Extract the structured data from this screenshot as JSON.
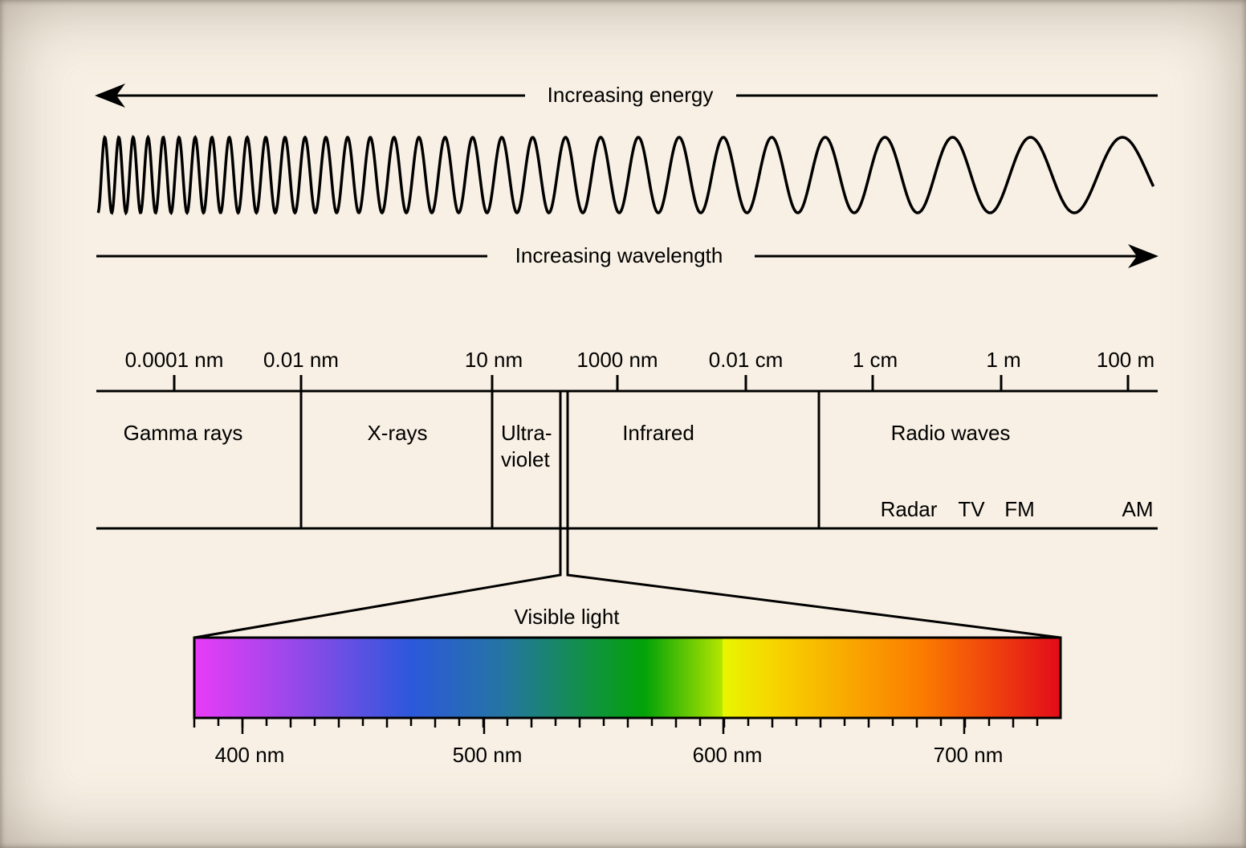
{
  "arrows": {
    "energy_label": "Increasing energy",
    "wavelength_label": "Increasing wavelength"
  },
  "scale": {
    "ticks": [
      "0.0001 nm",
      "0.01 nm",
      "10 nm",
      "1000 nm",
      "0.01 cm",
      "1 cm",
      "1 m",
      "100 m"
    ]
  },
  "bands": {
    "gamma": "Gamma rays",
    "xray": "X-rays",
    "uv_line1": "Ultra-",
    "uv_line2": "violet",
    "infrared": "Infrared",
    "radio": "Radio waves"
  },
  "radio_sub": [
    "Radar",
    "TV",
    "FM",
    "AM"
  ],
  "visible": {
    "title": "Visible light",
    "ticks": [
      "400 nm",
      "500 nm",
      "600 nm",
      "700 nm"
    ],
    "gradient": [
      {
        "at": 0.0,
        "color": "#e93cf7"
      },
      {
        "at": 0.11,
        "color": "#9b48ea"
      },
      {
        "at": 0.25,
        "color": "#2c58dc"
      },
      {
        "at": 0.36,
        "color": "#2476a0"
      },
      {
        "at": 0.45,
        "color": "#129048"
      },
      {
        "at": 0.52,
        "color": "#02a208"
      },
      {
        "at": 0.61,
        "color": "#b4e600"
      },
      {
        "at": 0.6,
        "color": "#e8f600"
      },
      {
        "at": 0.67,
        "color": "#f7d400"
      },
      {
        "at": 0.84,
        "color": "#fb7c00"
      },
      {
        "at": 1.0,
        "color": "#e30b1a"
      }
    ]
  }
}
